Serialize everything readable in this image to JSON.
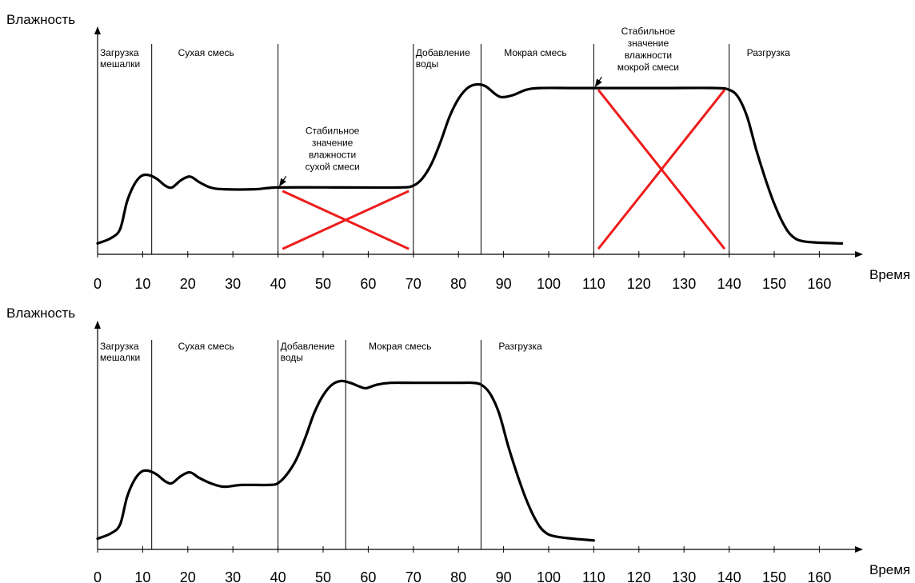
{
  "chart_data": [
    {
      "type": "line",
      "y_axis_label": "Влажность",
      "x_axis_label": "Время",
      "x_ticks": [
        "0",
        "10",
        "20",
        "30",
        "40",
        "50",
        "60",
        "70",
        "80",
        "90",
        "100",
        "110",
        "120",
        "130",
        "140",
        "150",
        "160"
      ],
      "xlim": [
        0,
        165
      ],
      "phases": [
        {
          "start": 0,
          "end": 12,
          "label": [
            "Загрузка",
            "мешалки"
          ]
        },
        {
          "start": 12,
          "end": 70,
          "label": [
            "Сухая смесь"
          ]
        },
        {
          "start": 70,
          "end": 85,
          "label": [
            "Добавление",
            "воды"
          ]
        },
        {
          "start": 85,
          "end": 140,
          "label": [
            "Мокрая смесь"
          ]
        },
        {
          "start": 140,
          "end": 165,
          "label": [
            "Разгрузка"
          ]
        }
      ],
      "extra_markers": [
        40,
        110
      ],
      "series": [
        {
          "values": [
            [
              0,
              0.06
            ],
            [
              3,
              0.09
            ],
            [
              5,
              0.14
            ],
            [
              6.5,
              0.29
            ],
            [
              8,
              0.38
            ],
            [
              9.5,
              0.43
            ],
            [
              11,
              0.44
            ],
            [
              13,
              0.42
            ],
            [
              15,
              0.38
            ],
            [
              16.5,
              0.37
            ],
            [
              18.5,
              0.41
            ],
            [
              20.5,
              0.43
            ],
            [
              22.5,
              0.4
            ],
            [
              25,
              0.37
            ],
            [
              28,
              0.36
            ],
            [
              35,
              0.36
            ],
            [
              40,
              0.37
            ],
            [
              55,
              0.37
            ],
            [
              67,
              0.37
            ],
            [
              70,
              0.38
            ],
            [
              72,
              0.42
            ],
            [
              74,
              0.5
            ],
            [
              76,
              0.62
            ],
            [
              78,
              0.76
            ],
            [
              80,
              0.86
            ],
            [
              82,
              0.92
            ],
            [
              84,
              0.94
            ],
            [
              86,
              0.93
            ],
            [
              88,
              0.89
            ],
            [
              89.5,
              0.87
            ],
            [
              92,
              0.88
            ],
            [
              95,
              0.91
            ],
            [
              98,
              0.92
            ],
            [
              105,
              0.92
            ],
            [
              110,
              0.92
            ],
            [
              125,
              0.92
            ],
            [
              137,
              0.92
            ],
            [
              140,
              0.91
            ],
            [
              142,
              0.87
            ],
            [
              144,
              0.76
            ],
            [
              146,
              0.58
            ],
            [
              148,
              0.42
            ],
            [
              150,
              0.28
            ],
            [
              152,
              0.17
            ],
            [
              154,
              0.1
            ],
            [
              157,
              0.07
            ],
            [
              165,
              0.06
            ]
          ]
        }
      ],
      "annotations": [
        {
          "text": [
            "Стабильное",
            "значение",
            "влажности",
            "сухой смеси"
          ],
          "target": [
            40,
            0.37
          ]
        },
        {
          "text": [
            "Стабильное",
            "значение",
            "влажности",
            "мокрой смеси"
          ],
          "target": [
            110,
            0.92
          ]
        }
      ],
      "crosses": [
        {
          "x1": 41,
          "x2": 69,
          "y_low": 0.03,
          "y_high": 0.35,
          "color": "#ee1c1c"
        },
        {
          "x1": 111,
          "x2": 139,
          "y_low": 0.03,
          "y_high": 0.91,
          "color": "#ee1c1c"
        }
      ]
    },
    {
      "type": "line",
      "y_axis_label": "Влажность",
      "x_axis_label": "Время",
      "x_ticks": [
        "0",
        "10",
        "20",
        "30",
        "40",
        "50",
        "60",
        "70",
        "80",
        "90",
        "100",
        "110",
        "120",
        "130",
        "140",
        "150",
        "160"
      ],
      "xlim": [
        0,
        165
      ],
      "phases": [
        {
          "start": 0,
          "end": 12,
          "label": [
            "Загрузка",
            "мешалки"
          ]
        },
        {
          "start": 12,
          "end": 40,
          "label": [
            "Сухая смесь"
          ]
        },
        {
          "start": 40,
          "end": 55,
          "label": [
            "Добавление",
            "воды"
          ]
        },
        {
          "start": 55,
          "end": 85,
          "label": [
            "Мокрая смесь"
          ]
        },
        {
          "start": 85,
          "end": 165,
          "label": [
            "Разгрузка"
          ]
        }
      ],
      "extra_markers": [],
      "series": [
        {
          "values": [
            [
              0,
              0.06
            ],
            [
              3,
              0.09
            ],
            [
              5,
              0.14
            ],
            [
              6.5,
              0.29
            ],
            [
              8,
              0.38
            ],
            [
              9.5,
              0.43
            ],
            [
              11,
              0.44
            ],
            [
              13,
              0.42
            ],
            [
              15,
              0.38
            ],
            [
              16.5,
              0.37
            ],
            [
              18.5,
              0.41
            ],
            [
              20.5,
              0.43
            ],
            [
              22.5,
              0.4
            ],
            [
              25,
              0.37
            ],
            [
              28,
              0.35
            ],
            [
              32,
              0.36
            ],
            [
              38,
              0.36
            ],
            [
              40,
              0.37
            ],
            [
              42,
              0.42
            ],
            [
              44,
              0.5
            ],
            [
              46,
              0.62
            ],
            [
              48,
              0.76
            ],
            [
              50,
              0.86
            ],
            [
              52,
              0.92
            ],
            [
              54,
              0.94
            ],
            [
              56,
              0.93
            ],
            [
              58,
              0.91
            ],
            [
              59.5,
              0.9
            ],
            [
              62,
              0.92
            ],
            [
              65,
              0.93
            ],
            [
              70,
              0.93
            ],
            [
              80,
              0.93
            ],
            [
              83,
              0.93
            ],
            [
              85,
              0.92
            ],
            [
              87,
              0.87
            ],
            [
              89,
              0.76
            ],
            [
              91,
              0.58
            ],
            [
              93,
              0.42
            ],
            [
              95,
              0.28
            ],
            [
              97,
              0.17
            ],
            [
              99,
              0.1
            ],
            [
              102,
              0.07
            ],
            [
              110,
              0.05
            ]
          ]
        }
      ],
      "annotations": [],
      "crosses": []
    }
  ]
}
